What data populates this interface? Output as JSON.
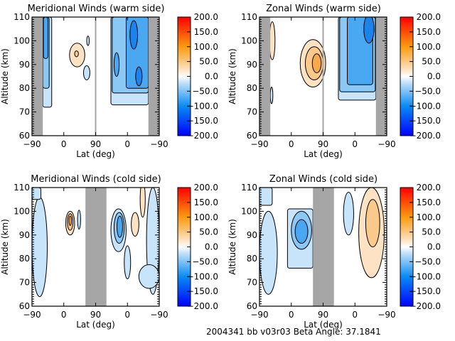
{
  "footer": {
    "text": "2004341 bb v03r03   Beta Angle: 37.1841"
  },
  "colors": {
    "gray_band": "#a6a6a6",
    "neg1": "#c7e4fb",
    "neg2": "#8cc8f6",
    "neg3": "#4aa8f2",
    "neg4": "#1c82ec",
    "neg5": "#0a56e6",
    "pos1": "#fde3c4",
    "pos2": "#fbc98c",
    "pos3": "#f7a94c",
    "pos4": "#f3861a"
  },
  "colorbar": {
    "min": -200,
    "max": 200,
    "ticks": [
      "200.0",
      "150.0",
      "100.0",
      "50.0",
      "0.0",
      "−50.0",
      "−100.0",
      "−150.0",
      "−200.0"
    ],
    "stops": [
      {
        "v": -200,
        "c": "#0000ff"
      },
      {
        "v": -100,
        "c": "#0a8cf5"
      },
      {
        "v": -25,
        "c": "#b8dcf9"
      },
      {
        "v": 0,
        "c": "#ffffff"
      },
      {
        "v": 25,
        "c": "#fde0bc"
      },
      {
        "v": 100,
        "c": "#fb9a10"
      },
      {
        "v": 200,
        "c": "#ff0000"
      }
    ]
  },
  "chart_data": [
    {
      "type": "heatmap",
      "title": "Meridional Winds (warm side)",
      "xlabel": "Lat (deg)",
      "ylabel": "Altitude (km)",
      "x_tick_labels": [
        "−90",
        "0",
        "90",
        "0",
        "−90"
      ],
      "y_tick_labels": [
        "110",
        "100",
        "90",
        "80",
        "70",
        "60"
      ],
      "ylim": [
        60,
        110
      ],
      "colorbar_range": [
        -200,
        200
      ],
      "gray_bands_lat_path": [
        [
          0,
          0.085
        ],
        [
          0.915,
          1.0
        ]
      ],
      "divider_at": 0.5,
      "features": [
        {
          "desc": "negative band near -80 lat (left half)",
          "level": -100,
          "alt_range": [
            73,
            110
          ]
        },
        {
          "desc": "positive cell ~40 lat",
          "level": 25,
          "alt": 94
        },
        {
          "desc": "strong negative region right half",
          "level": -150,
          "alt_range": [
            73,
            110
          ]
        }
      ]
    },
    {
      "type": "heatmap",
      "title": "Zonal Winds (warm side)",
      "xlabel": "Lat (deg)",
      "ylabel": "Altitude (km)",
      "x_tick_labels": [
        "−90",
        "0",
        "90",
        "0",
        "−90"
      ],
      "y_tick_labels": [
        "110",
        "100",
        "90",
        "80",
        "70",
        "60"
      ],
      "ylim": [
        60,
        110
      ],
      "colorbar_range": [
        -200,
        200
      ],
      "gray_bands_lat_path": [
        [
          0,
          0.085
        ],
        [
          0.915,
          1.0
        ]
      ],
      "divider_at": 0.5,
      "features": [
        {
          "desc": "positive cell ~70 lat",
          "level": 75,
          "alt": 90
        },
        {
          "desc": "positive cell ~45 lat (right half)",
          "level": 50,
          "alt": 90
        },
        {
          "desc": "broad negative region right half",
          "level": -125,
          "alt_range": [
            75,
            110
          ]
        }
      ]
    },
    {
      "type": "heatmap",
      "title": "Meridional Winds (cold side)",
      "xlabel": "Lat (deg)",
      "ylabel": "Altitude (km)",
      "x_tick_labels": [
        "−90",
        "0",
        "90",
        "0",
        "−90"
      ],
      "y_tick_labels": [
        "110",
        "100",
        "90",
        "80",
        "70",
        "60"
      ],
      "ylim": [
        60,
        110
      ],
      "colorbar_range": [
        -200,
        200
      ],
      "gray_bands_lat_path": [
        [
          0.42,
          0.585
        ]
      ],
      "features": [
        {
          "desc": "negative band near -80 lat",
          "level": -25,
          "alt_range": [
            70,
            110
          ]
        },
        {
          "desc": "positive cell ~25 lat",
          "level": 100,
          "alt": 96
        },
        {
          "desc": "negative cell right of gap",
          "level": -125,
          "alt": 93
        }
      ]
    },
    {
      "type": "heatmap",
      "title": "Zonal Winds (cold side)",
      "xlabel": "Lat (deg)",
      "ylabel": "Altitude (km)",
      "x_tick_labels": [
        "−90",
        "0",
        "90",
        "0",
        "−90"
      ],
      "y_tick_labels": [
        "110",
        "100",
        "90",
        "80",
        "70",
        "60"
      ],
      "ylim": [
        60,
        110
      ],
      "colorbar_range": [
        -200,
        200
      ],
      "gray_bands_lat_path": [
        [
          0.42,
          0.585
        ]
      ],
      "features": [
        {
          "desc": "negative cell ~40 lat",
          "level": -100,
          "alt": 92
        },
        {
          "desc": "positive region ~-60 lat (right half)",
          "level": 50,
          "alt": 97
        }
      ]
    }
  ]
}
